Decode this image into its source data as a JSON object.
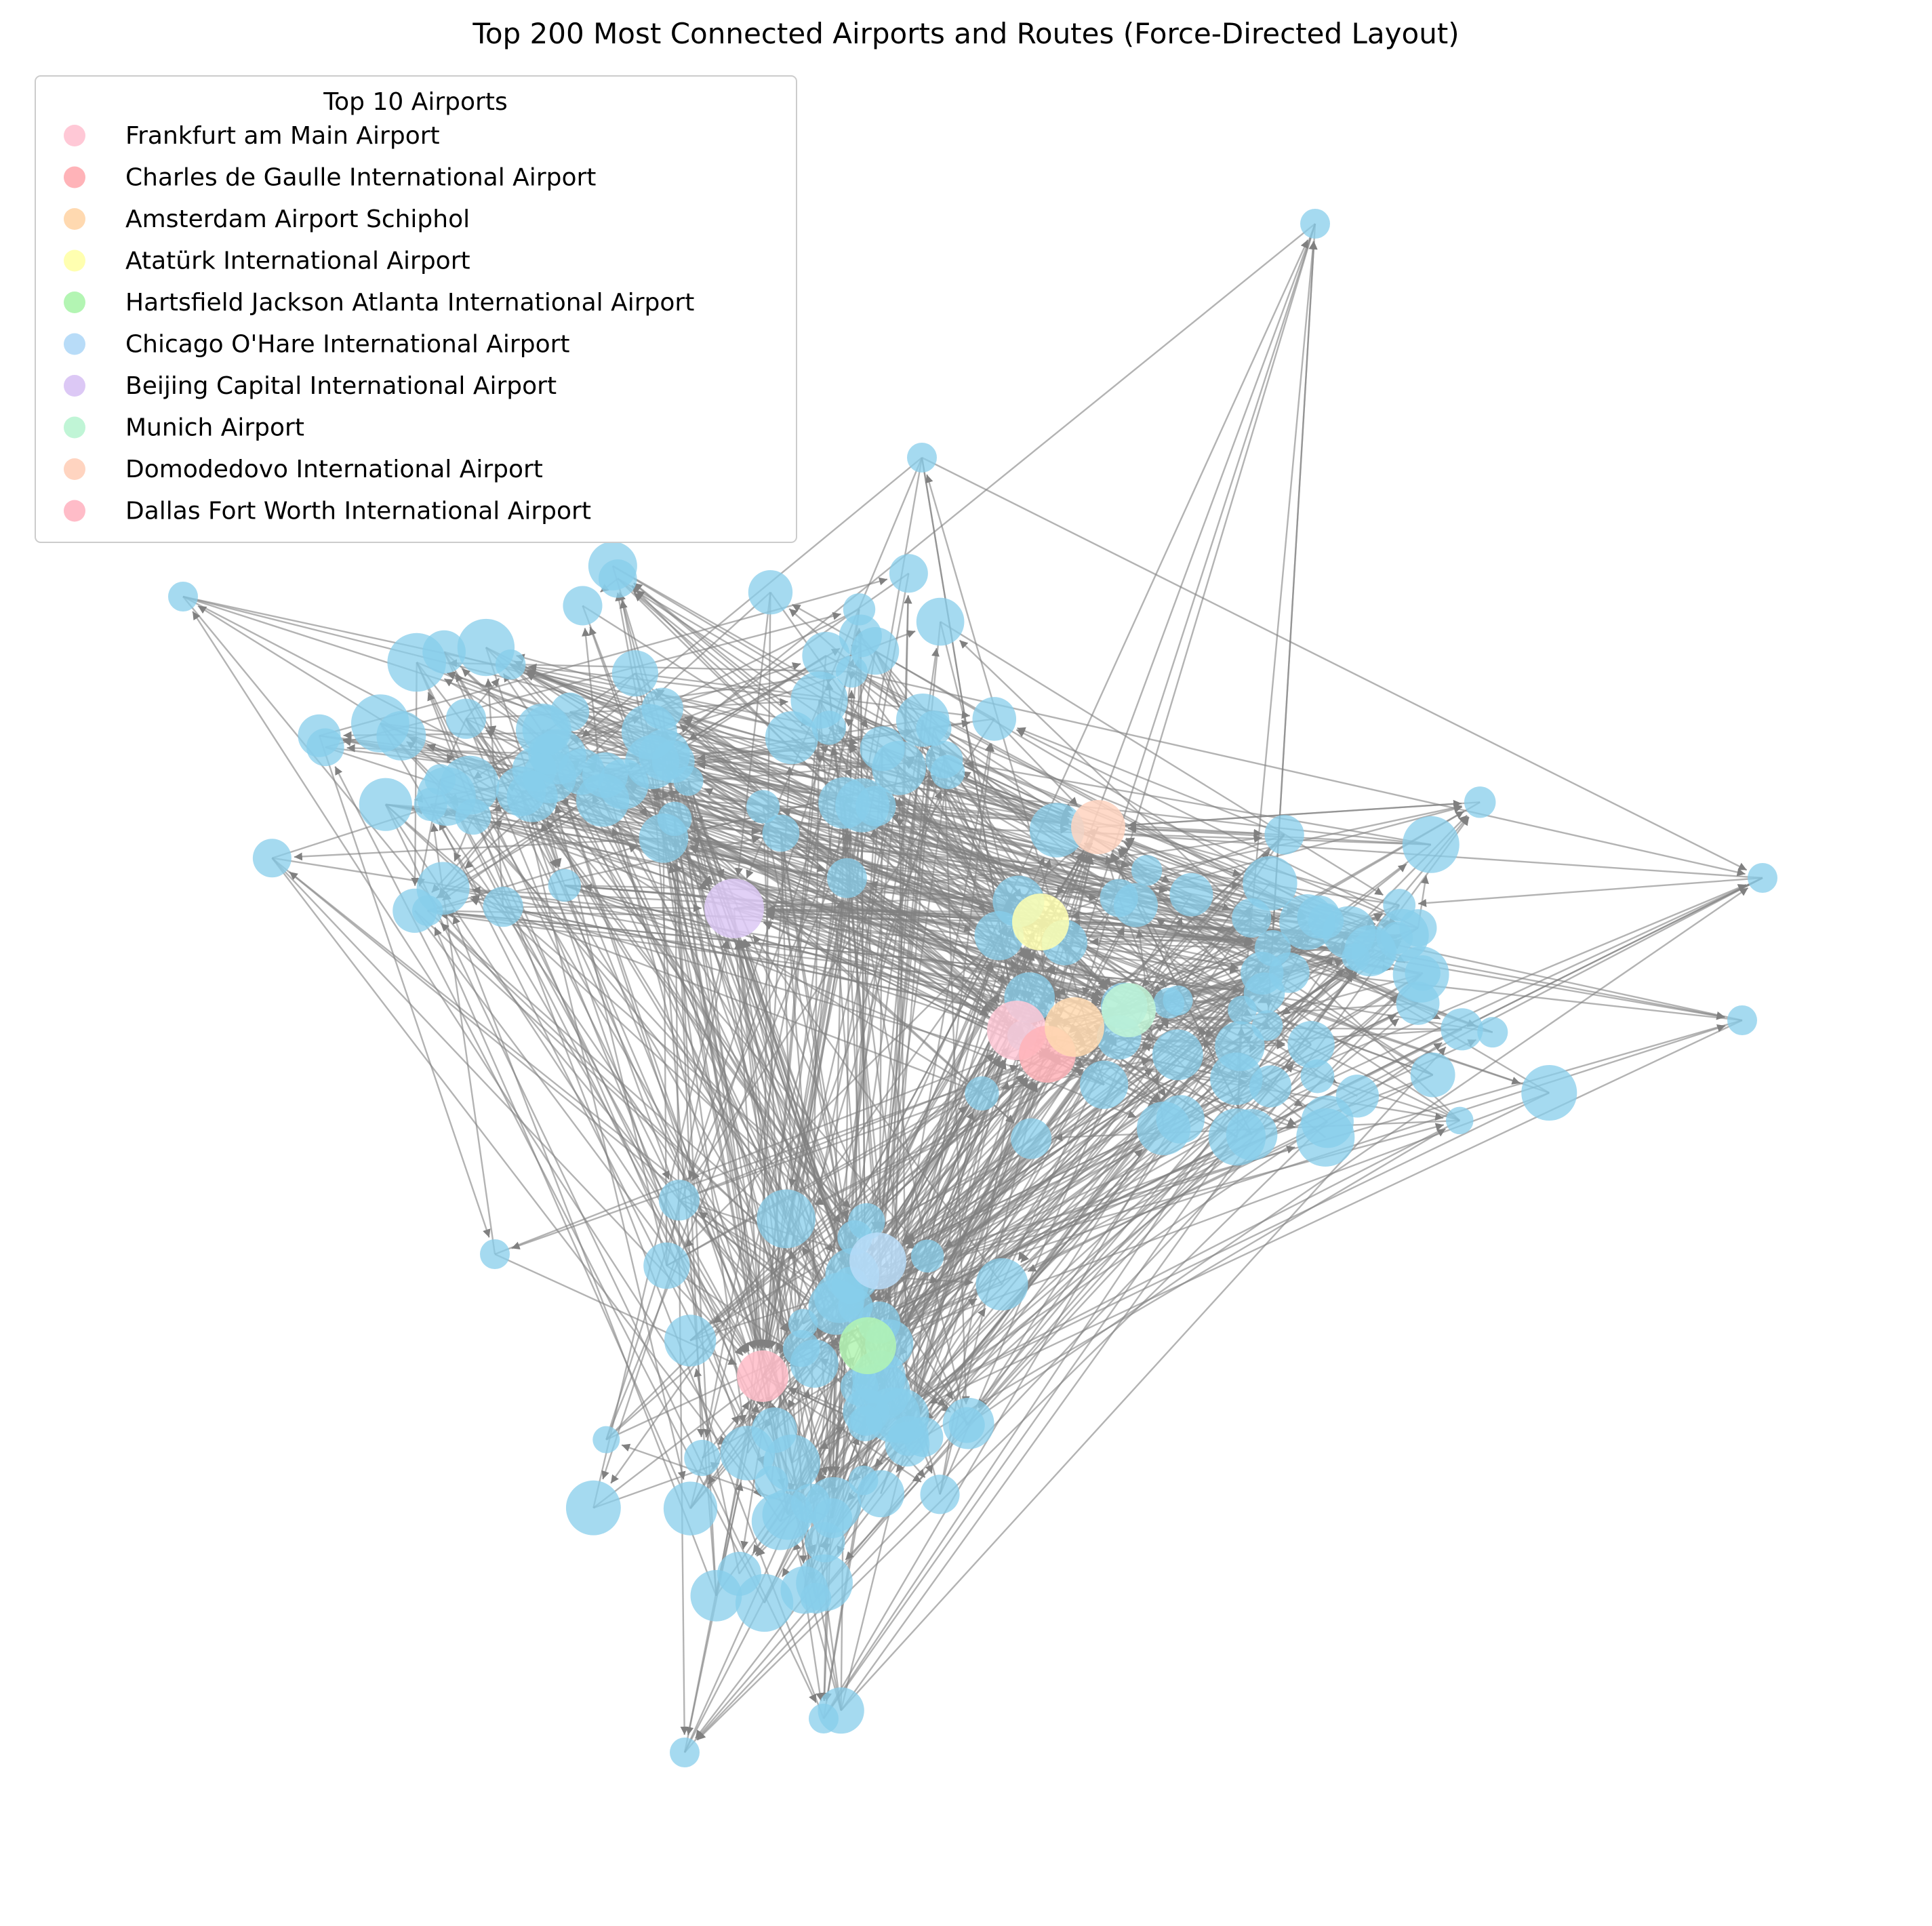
{
  "title": "Top 200 Most Connected Airports and Routes (Force-Directed Layout)",
  "legend": {
    "title": "Top 10 Airports",
    "placement": "upper-left",
    "items": [
      {
        "label": "Frankfurt am Main Airport",
        "color": "#ffc8d6"
      },
      {
        "label": "Charles de Gaulle International Airport",
        "color": "#ffb3b8"
      },
      {
        "label": "Amsterdam Airport Schiphol",
        "color": "#ffd9b0"
      },
      {
        "label": "Atatürk International Airport",
        "color": "#ffffb0"
      },
      {
        "label": "Hartsfield Jackson Atlanta International Airport",
        "color": "#b3f5b3"
      },
      {
        "label": "Chicago O'Hare International Airport",
        "color": "#b8dcf8"
      },
      {
        "label": "Beijing Capital International Airport",
        "color": "#dcc8f5"
      },
      {
        "label": "Munich Airport",
        "color": "#c0f5d6"
      },
      {
        "label": "Domodedovo International Airport",
        "color": "#ffd4c0"
      },
      {
        "label": "Dallas Fort Worth International Airport",
        "color": "#ffbcc8"
      }
    ]
  },
  "colors": {
    "default_node": "#87ceeb",
    "edge": "#808080"
  },
  "chart_data": {
    "type": "network",
    "layout": "force-directed",
    "node_count": 200,
    "highlighted_nodes": 10
  }
}
